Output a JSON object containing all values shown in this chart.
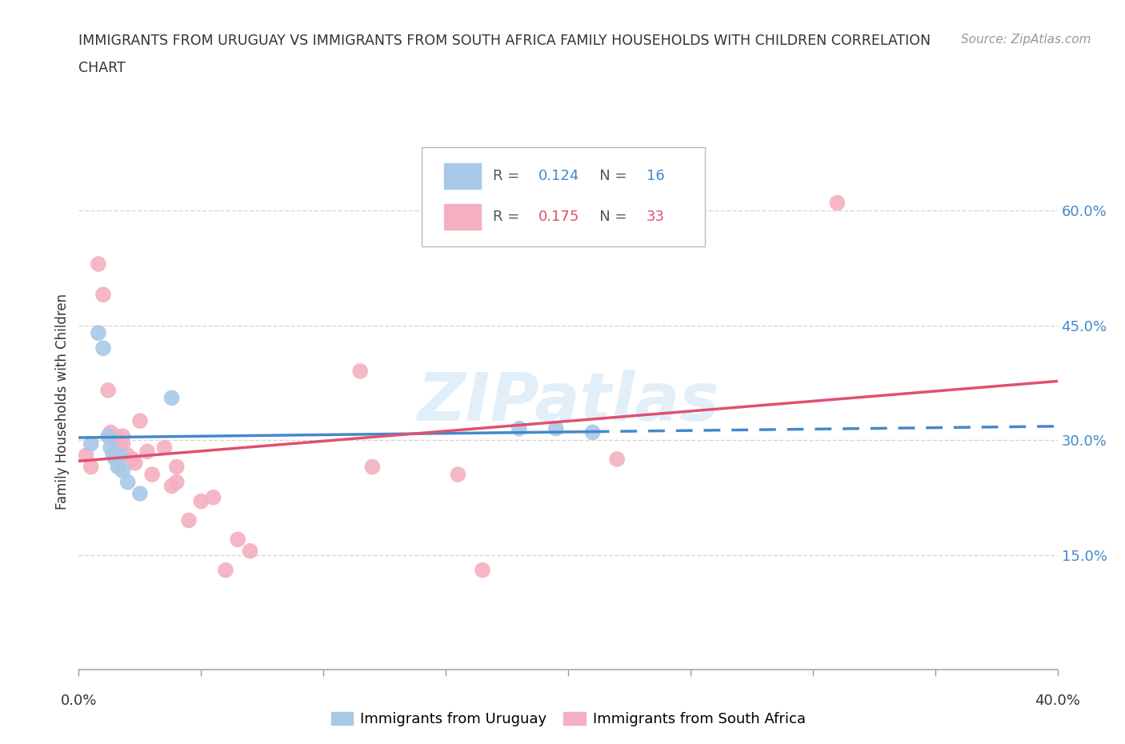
{
  "title_line1": "IMMIGRANTS FROM URUGUAY VS IMMIGRANTS FROM SOUTH AFRICA FAMILY HOUSEHOLDS WITH CHILDREN CORRELATION",
  "title_line2": "CHART",
  "source": "Source: ZipAtlas.com",
  "ylabel": "Family Households with Children",
  "xlim": [
    0.0,
    0.4
  ],
  "ylim": [
    0.0,
    0.7
  ],
  "ytick_values": [
    0.15,
    0.3,
    0.45,
    0.6
  ],
  "xtick_values": [
    0.0,
    0.05,
    0.1,
    0.15,
    0.2,
    0.25,
    0.3,
    0.35,
    0.4
  ],
  "xtick_label_positions": [
    0.0,
    0.4
  ],
  "xtick_label_texts": [
    "0.0%",
    "40.0%"
  ],
  "uruguay_x": [
    0.005,
    0.008,
    0.01,
    0.012,
    0.013,
    0.014,
    0.015,
    0.016,
    0.017,
    0.018,
    0.02,
    0.025,
    0.038,
    0.18,
    0.195,
    0.21
  ],
  "uruguay_y": [
    0.295,
    0.44,
    0.42,
    0.305,
    0.29,
    0.28,
    0.275,
    0.265,
    0.28,
    0.26,
    0.245,
    0.23,
    0.355,
    0.315,
    0.315,
    0.31
  ],
  "sa_x": [
    0.003,
    0.005,
    0.008,
    0.01,
    0.012,
    0.013,
    0.015,
    0.016,
    0.017,
    0.018,
    0.018,
    0.02,
    0.022,
    0.023,
    0.025,
    0.028,
    0.03,
    0.035,
    0.038,
    0.04,
    0.04,
    0.045,
    0.05,
    0.055,
    0.06,
    0.065,
    0.07,
    0.115,
    0.12,
    0.155,
    0.165,
    0.22,
    0.31
  ],
  "sa_y": [
    0.28,
    0.265,
    0.53,
    0.49,
    0.365,
    0.31,
    0.305,
    0.29,
    0.295,
    0.305,
    0.295,
    0.28,
    0.275,
    0.27,
    0.325,
    0.285,
    0.255,
    0.29,
    0.24,
    0.265,
    0.245,
    0.195,
    0.22,
    0.225,
    0.13,
    0.17,
    0.155,
    0.39,
    0.265,
    0.255,
    0.13,
    0.275,
    0.61
  ],
  "uruguay_color": "#a8c8e8",
  "sa_color": "#f4b0c0",
  "uruguay_line_color": "#4488cc",
  "sa_line_color": "#e05070",
  "r_uruguay": "0.124",
  "n_uruguay": "16",
  "r_sa": "0.175",
  "n_sa": "33",
  "watermark": "ZIPatlas",
  "background_color": "#ffffff",
  "grid_color": "#cccccc",
  "right_axis_color": "#4488cc"
}
